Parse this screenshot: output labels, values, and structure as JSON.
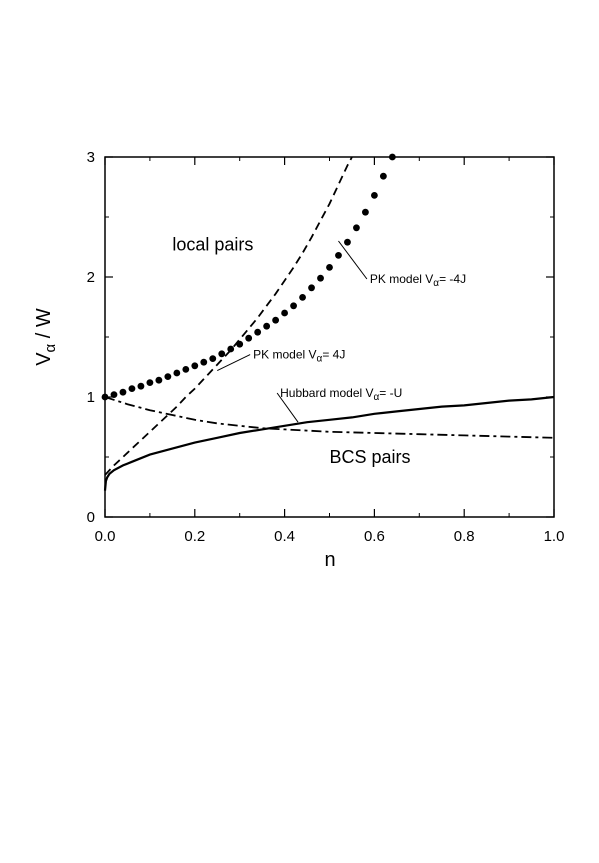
{
  "chart_data": {
    "type": "line",
    "xlabel": "n",
    "ylabel": {
      "base": "V",
      "sub": "α",
      "rest": "  / W"
    },
    "xlim": [
      0,
      1
    ],
    "ylim": [
      0,
      3
    ],
    "xticks": [
      0,
      0.2,
      0.4,
      0.6,
      0.8,
      1
    ],
    "xtick_labels": [
      "0.0",
      "0.2",
      "0.4",
      "0.6",
      "0.8",
      "1.0"
    ],
    "yticks": [
      0,
      1,
      2,
      3
    ],
    "ytick_labels": [
      "0",
      "1",
      "2",
      "3"
    ],
    "grid": false,
    "regions": [
      {
        "text": "local pairs",
        "x": 0.15,
        "y": 2.22
      },
      {
        "text": "BCS pairs",
        "x": 0.5,
        "y": 0.45
      }
    ],
    "series": [
      {
        "style": "dotted",
        "points": [
          [
            0.0,
            1.0
          ],
          [
            0.02,
            1.02
          ],
          [
            0.04,
            1.04
          ],
          [
            0.06,
            1.07
          ],
          [
            0.08,
            1.09
          ],
          [
            0.1,
            1.12
          ],
          [
            0.12,
            1.14
          ],
          [
            0.14,
            1.17
          ],
          [
            0.16,
            1.2
          ],
          [
            0.18,
            1.23
          ],
          [
            0.2,
            1.26
          ],
          [
            0.22,
            1.29
          ],
          [
            0.24,
            1.32
          ],
          [
            0.26,
            1.36
          ],
          [
            0.28,
            1.4
          ],
          [
            0.3,
            1.44
          ],
          [
            0.32,
            1.49
          ],
          [
            0.34,
            1.54
          ],
          [
            0.36,
            1.59
          ],
          [
            0.38,
            1.64
          ],
          [
            0.4,
            1.7
          ],
          [
            0.42,
            1.76
          ],
          [
            0.44,
            1.83
          ],
          [
            0.46,
            1.91
          ],
          [
            0.48,
            1.99
          ],
          [
            0.5,
            2.08
          ],
          [
            0.52,
            2.18
          ],
          [
            0.54,
            2.29
          ],
          [
            0.56,
            2.41
          ],
          [
            0.58,
            2.54
          ],
          [
            0.6,
            2.68
          ],
          [
            0.62,
            2.84
          ],
          [
            0.64,
            3.0
          ]
        ]
      },
      {
        "style": "dashed",
        "points": [
          [
            0.0,
            0.35
          ],
          [
            0.02,
            0.43
          ],
          [
            0.04,
            0.5
          ],
          [
            0.06,
            0.57
          ],
          [
            0.08,
            0.64
          ],
          [
            0.1,
            0.71
          ],
          [
            0.12,
            0.78
          ],
          [
            0.14,
            0.85
          ],
          [
            0.16,
            0.92
          ],
          [
            0.18,
            1.0
          ],
          [
            0.2,
            1.07
          ],
          [
            0.22,
            1.15
          ],
          [
            0.24,
            1.23
          ],
          [
            0.26,
            1.31
          ],
          [
            0.28,
            1.39
          ],
          [
            0.3,
            1.48
          ],
          [
            0.32,
            1.57
          ],
          [
            0.34,
            1.66
          ],
          [
            0.36,
            1.76
          ],
          [
            0.38,
            1.86
          ],
          [
            0.4,
            1.97
          ],
          [
            0.42,
            2.08
          ],
          [
            0.44,
            2.2
          ],
          [
            0.46,
            2.33
          ],
          [
            0.48,
            2.47
          ],
          [
            0.5,
            2.61
          ],
          [
            0.52,
            2.77
          ],
          [
            0.54,
            2.93
          ],
          [
            0.55,
            3.0
          ]
        ]
      },
      {
        "style": "solid",
        "points": [
          [
            0.0,
            0.22
          ],
          [
            0.002,
            0.3
          ],
          [
            0.005,
            0.33
          ],
          [
            0.01,
            0.36
          ],
          [
            0.02,
            0.39
          ],
          [
            0.04,
            0.43
          ],
          [
            0.06,
            0.46
          ],
          [
            0.08,
            0.49
          ],
          [
            0.1,
            0.52
          ],
          [
            0.15,
            0.57
          ],
          [
            0.2,
            0.62
          ],
          [
            0.25,
            0.66
          ],
          [
            0.3,
            0.7
          ],
          [
            0.35,
            0.73
          ],
          [
            0.4,
            0.76
          ],
          [
            0.45,
            0.79
          ],
          [
            0.5,
            0.81
          ],
          [
            0.55,
            0.83
          ],
          [
            0.6,
            0.86
          ],
          [
            0.65,
            0.88
          ],
          [
            0.7,
            0.9
          ],
          [
            0.75,
            0.92
          ],
          [
            0.8,
            0.93
          ],
          [
            0.85,
            0.95
          ],
          [
            0.9,
            0.97
          ],
          [
            0.95,
            0.98
          ],
          [
            1.0,
            1.0
          ]
        ]
      },
      {
        "style": "dashdot",
        "points": [
          [
            0.0,
            1.0
          ],
          [
            0.05,
            0.94
          ],
          [
            0.1,
            0.89
          ],
          [
            0.15,
            0.85
          ],
          [
            0.2,
            0.81
          ],
          [
            0.25,
            0.78
          ],
          [
            0.3,
            0.76
          ],
          [
            0.35,
            0.74
          ],
          [
            0.4,
            0.73
          ],
          [
            0.45,
            0.72
          ],
          [
            0.5,
            0.71
          ],
          [
            0.6,
            0.7
          ],
          [
            0.7,
            0.69
          ],
          [
            0.8,
            0.68
          ],
          [
            0.9,
            0.67
          ],
          [
            1.0,
            0.66
          ]
        ]
      }
    ],
    "annotations": [
      {
        "text": "PK model  V",
        "sub": "α",
        "rest": "= -4J",
        "x": 0.59,
        "y": 1.95,
        "line_to": [
          0.52,
          2.3
        ]
      },
      {
        "text": "PK model  V",
        "sub": "α",
        "rest": "= 4J",
        "x": 0.33,
        "y": 1.32,
        "line_to": [
          0.25,
          1.22
        ]
      },
      {
        "text": "Hubbard model  V",
        "sub": "α",
        "rest": "= -U",
        "x": 0.39,
        "y": 1.0,
        "line_to": [
          0.43,
          0.79
        ]
      }
    ]
  }
}
